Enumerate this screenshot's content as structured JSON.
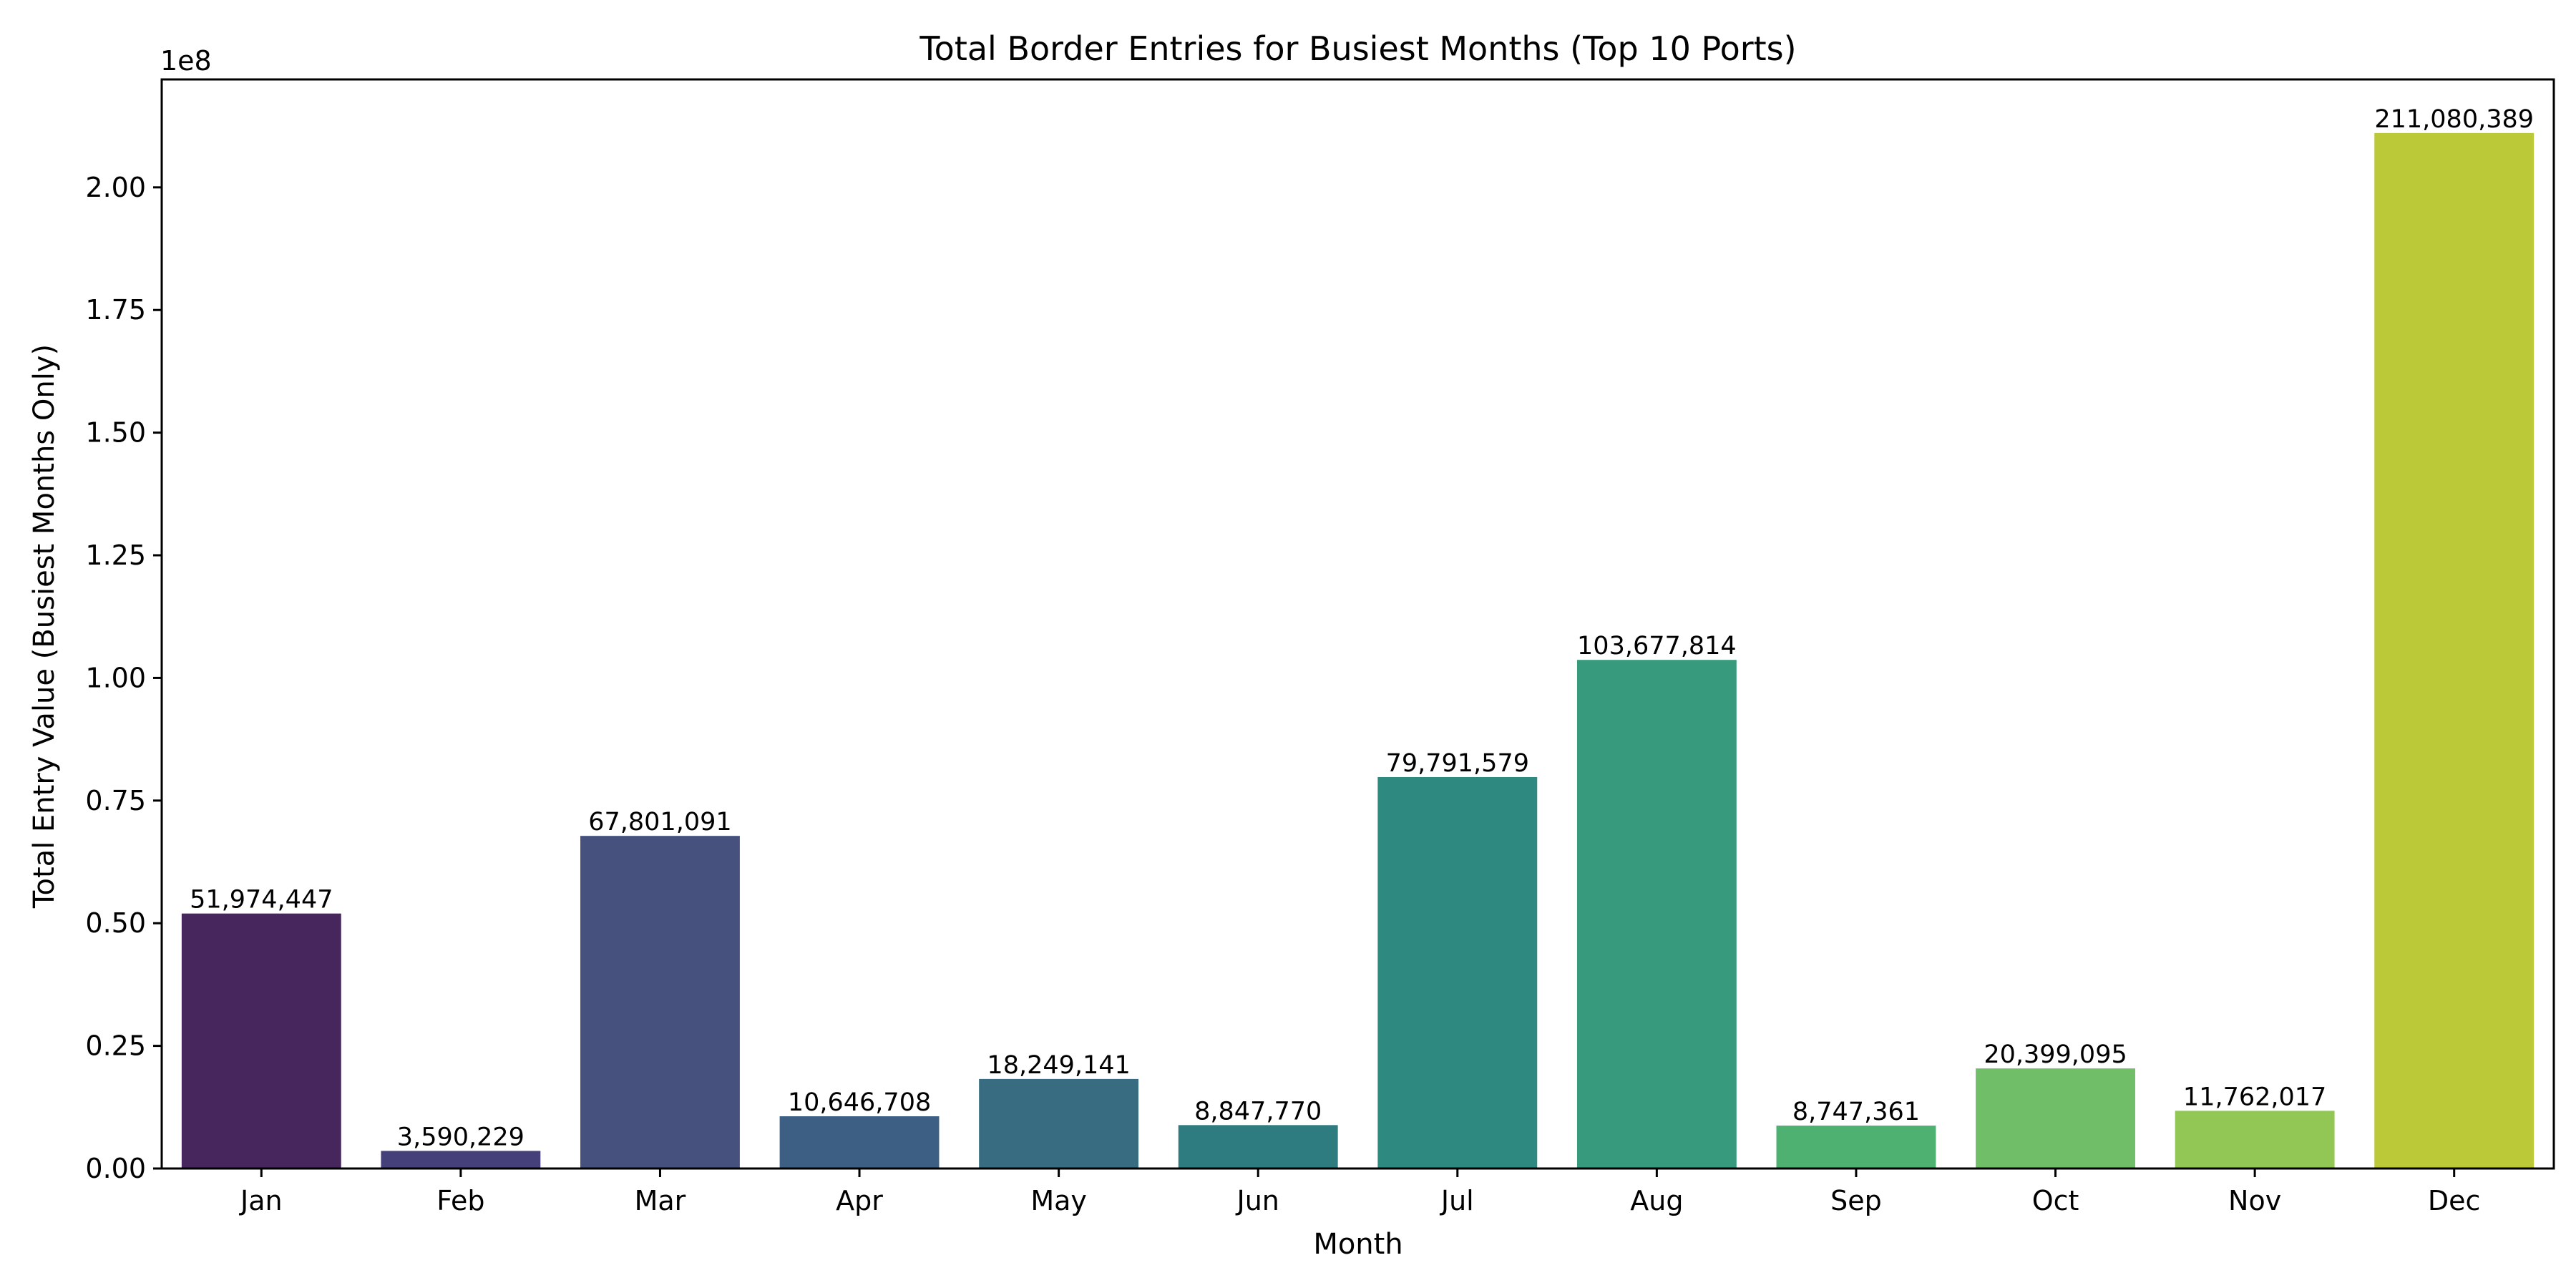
{
  "chart_data": {
    "type": "bar",
    "title": "Total Border Entries for Busiest Months (Top 10 Ports)",
    "xlabel": "Month",
    "ylabel": "Total Entry Value (Busiest Months Only)",
    "y_offset_text": "1e8",
    "ylim": [
      0,
      2.22
    ],
    "yticks": [
      0.0,
      0.25,
      0.5,
      0.75,
      1.0,
      1.25,
      1.5,
      1.75,
      2.0
    ],
    "ytick_labels": [
      "0.00",
      "0.25",
      "0.50",
      "0.75",
      "1.00",
      "1.25",
      "1.50",
      "1.75",
      "2.00"
    ],
    "grid": false,
    "categories": [
      "Jan",
      "Feb",
      "Mar",
      "Apr",
      "May",
      "Jun",
      "Jul",
      "Aug",
      "Sep",
      "Oct",
      "Nov",
      "Dec"
    ],
    "values": [
      51974447,
      3590229,
      67801091,
      10646708,
      18249141,
      8847770,
      79791579,
      103677814,
      8747361,
      20399095,
      11762017,
      211080389
    ],
    "value_labels": [
      "51,974,447",
      "3,590,229",
      "67,801,091",
      "10,646,708",
      "18,249,141",
      "8,847,770",
      "79,791,579",
      "103,677,814",
      "8,747,361",
      "20,399,095",
      "11,762,017",
      "211,080,389"
    ],
    "colors": [
      "#47265e",
      "#453f7a",
      "#46517e",
      "#3d5f83",
      "#376c81",
      "#2e7b80",
      "#2e8a80",
      "#379a7c",
      "#4fb171",
      "#70be67",
      "#92c655",
      "#bbc837"
    ]
  }
}
